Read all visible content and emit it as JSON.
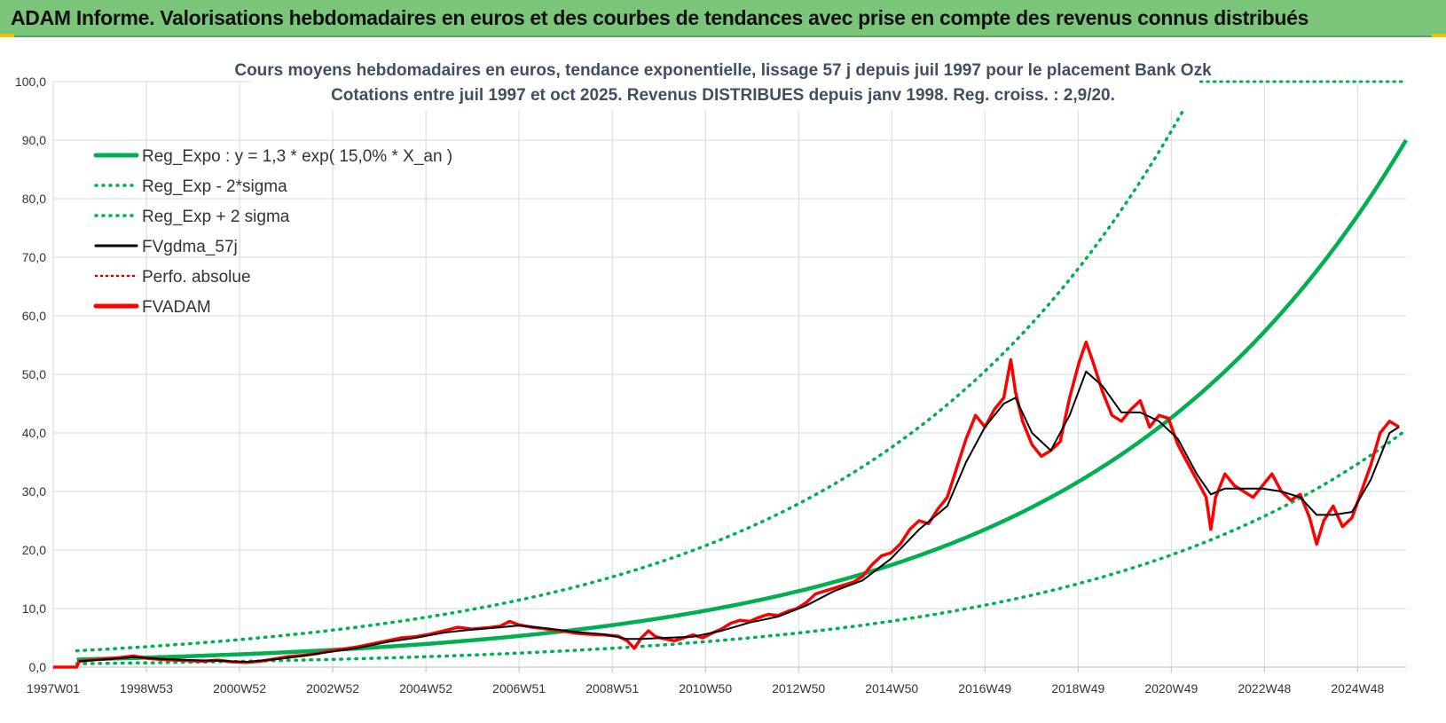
{
  "header": {
    "title": "ADAM Informe. Valorisations hebdomadaires en euros et des courbes de tendances avec prise en compte des revenus connus distribués"
  },
  "colors": {
    "header_bg": "#7bc57b",
    "green": "#00b050",
    "red": "#ff0000",
    "black": "#000000",
    "grid": "#d9d9d9"
  },
  "chart_data": {
    "type": "line",
    "title": "Cours moyens hebdomadaires en euros, tendance exponentielle, lissage 57 j depuis juil 1997 pour le placement Bank Ozk",
    "subtitle": "Cotations entre juil 1997 et oct 2025. Revenus DISTRIBUES depuis janv 1998. Reg. croiss. : 2,9/20.",
    "x_range": [
      1997.5,
      2026.25
    ],
    "ylim": [
      0,
      100
    ],
    "y_ticks": [
      "0,0",
      "10,0",
      "20,0",
      "30,0",
      "40,0",
      "50,0",
      "60,0",
      "70,0",
      "80,0",
      "90,0",
      "100,0"
    ],
    "x_tick_labels": [
      {
        "label": "1997W01",
        "t": 1997.5
      },
      {
        "label": "1998W53",
        "t": 1999.48
      },
      {
        "label": "2000W52",
        "t": 2001.46
      },
      {
        "label": "2002W52",
        "t": 2003.44
      },
      {
        "label": "2004W52",
        "t": 2005.42
      },
      {
        "label": "2006W51",
        "t": 2007.4
      },
      {
        "label": "2008W51",
        "t": 2009.38
      },
      {
        "label": "2010W50",
        "t": 2011.36
      },
      {
        "label": "2012W50",
        "t": 2013.34
      },
      {
        "label": "2014W50",
        "t": 2015.32
      },
      {
        "label": "2016W49",
        "t": 2017.3
      },
      {
        "label": "2018W49",
        "t": 2019.28
      },
      {
        "label": "2020W49",
        "t": 2021.26
      },
      {
        "label": "2022W48",
        "t": 2023.24
      },
      {
        "label": "2024W48",
        "t": 2025.22
      }
    ],
    "legend": [
      {
        "label": "Reg_Expo : y = 1,3 * exp( 15,0% *  X_an )",
        "color": "#00b050",
        "style": "solid-thick"
      },
      {
        "label": "Reg_Exp - 2*sigma",
        "color": "#00b050",
        "style": "dotted"
      },
      {
        "label": "Reg_Exp + 2 sigma",
        "color": "#00b050",
        "style": "dotted"
      },
      {
        "label": "FVgdma_57j",
        "color": "#000000",
        "style": "solid"
      },
      {
        "label": "Perfo. absolue",
        "color": "#c00000",
        "style": "dotted-thin"
      },
      {
        "label": "FVADAM",
        "color": "#ff0000",
        "style": "solid-thick"
      }
    ],
    "regression": {
      "a": 1.3,
      "rate": 0.15,
      "lower_factor": 0.45,
      "upper_factor": 2.15,
      "start": 1998.0
    },
    "series": [
      {
        "name": "FVADAM",
        "points": [
          [
            1997.5,
            0.0
          ],
          [
            1998.0,
            0.0
          ],
          [
            1998.05,
            1.0
          ],
          [
            1998.3,
            1.2
          ],
          [
            1998.6,
            1.4
          ],
          [
            1998.9,
            1.6
          ],
          [
            1999.2,
            1.9
          ],
          [
            1999.5,
            1.5
          ],
          [
            1999.8,
            1.3
          ],
          [
            2000.1,
            1.2
          ],
          [
            2000.4,
            1.1
          ],
          [
            2000.7,
            1.0
          ],
          [
            2001.0,
            1.2
          ],
          [
            2001.3,
            0.9
          ],
          [
            2001.6,
            0.8
          ],
          [
            2001.9,
            1.0
          ],
          [
            2002.2,
            1.4
          ],
          [
            2002.5,
            1.8
          ],
          [
            2002.8,
            2.0
          ],
          [
            2003.1,
            2.3
          ],
          [
            2003.4,
            2.8
          ],
          [
            2003.7,
            3.1
          ],
          [
            2004.0,
            3.5
          ],
          [
            2004.3,
            4.0
          ],
          [
            2004.6,
            4.5
          ],
          [
            2004.9,
            5.0
          ],
          [
            2005.2,
            5.2
          ],
          [
            2005.5,
            5.6
          ],
          [
            2005.8,
            6.2
          ],
          [
            2006.1,
            6.8
          ],
          [
            2006.4,
            6.5
          ],
          [
            2006.7,
            6.7
          ],
          [
            2007.0,
            7.0
          ],
          [
            2007.2,
            7.8
          ],
          [
            2007.4,
            7.2
          ],
          [
            2007.7,
            6.8
          ],
          [
            2008.0,
            6.5
          ],
          [
            2008.3,
            6.2
          ],
          [
            2008.6,
            5.8
          ],
          [
            2008.9,
            5.6
          ],
          [
            2009.2,
            5.5
          ],
          [
            2009.5,
            5.3
          ],
          [
            2009.7,
            4.5
          ],
          [
            2009.85,
            3.2
          ],
          [
            2010.0,
            5.0
          ],
          [
            2010.15,
            6.2
          ],
          [
            2010.3,
            5.2
          ],
          [
            2010.5,
            4.8
          ],
          [
            2010.7,
            4.5
          ],
          [
            2010.9,
            5.0
          ],
          [
            2011.1,
            5.5
          ],
          [
            2011.3,
            5.0
          ],
          [
            2011.5,
            5.8
          ],
          [
            2011.7,
            6.5
          ],
          [
            2011.9,
            7.5
          ],
          [
            2012.1,
            8.0
          ],
          [
            2012.3,
            7.8
          ],
          [
            2012.5,
            8.5
          ],
          [
            2012.7,
            9.0
          ],
          [
            2012.9,
            8.8
          ],
          [
            2013.1,
            9.5
          ],
          [
            2013.3,
            10.0
          ],
          [
            2013.5,
            11.0
          ],
          [
            2013.7,
            12.5
          ],
          [
            2013.9,
            13.0
          ],
          [
            2014.1,
            13.5
          ],
          [
            2014.3,
            14.0
          ],
          [
            2014.5,
            14.5
          ],
          [
            2014.7,
            15.5
          ],
          [
            2014.9,
            17.5
          ],
          [
            2015.1,
            19.0
          ],
          [
            2015.3,
            19.5
          ],
          [
            2015.5,
            21.0
          ],
          [
            2015.7,
            23.5
          ],
          [
            2015.9,
            25.0
          ],
          [
            2016.1,
            24.5
          ],
          [
            2016.3,
            27.0
          ],
          [
            2016.5,
            29.0
          ],
          [
            2016.7,
            34.0
          ],
          [
            2016.9,
            39.0
          ],
          [
            2017.1,
            43.0
          ],
          [
            2017.3,
            41.0
          ],
          [
            2017.5,
            44.0
          ],
          [
            2017.7,
            46.0
          ],
          [
            2017.85,
            52.5
          ],
          [
            2017.95,
            47.0
          ],
          [
            2018.1,
            42.0
          ],
          [
            2018.3,
            38.0
          ],
          [
            2018.5,
            36.0
          ],
          [
            2018.7,
            37.0
          ],
          [
            2018.9,
            38.5
          ],
          [
            2019.1,
            46.0
          ],
          [
            2019.3,
            52.0
          ],
          [
            2019.45,
            55.5
          ],
          [
            2019.6,
            52.0
          ],
          [
            2019.8,
            47.0
          ],
          [
            2020.0,
            43.0
          ],
          [
            2020.2,
            42.0
          ],
          [
            2020.4,
            44.0
          ],
          [
            2020.6,
            45.5
          ],
          [
            2020.8,
            41.0
          ],
          [
            2021.0,
            43.0
          ],
          [
            2021.2,
            42.5
          ],
          [
            2021.4,
            38.0
          ],
          [
            2021.6,
            35.0
          ],
          [
            2021.8,
            32.0
          ],
          [
            2022.0,
            29.0
          ],
          [
            2022.1,
            23.5
          ],
          [
            2022.2,
            29.0
          ],
          [
            2022.4,
            33.0
          ],
          [
            2022.6,
            31.0
          ],
          [
            2022.8,
            30.0
          ],
          [
            2023.0,
            29.0
          ],
          [
            2023.2,
            31.0
          ],
          [
            2023.4,
            33.0
          ],
          [
            2023.6,
            30.0
          ],
          [
            2023.8,
            28.5
          ],
          [
            2024.0,
            29.5
          ],
          [
            2024.2,
            25.5
          ],
          [
            2024.35,
            21.0
          ],
          [
            2024.5,
            25.0
          ],
          [
            2024.7,
            27.5
          ],
          [
            2024.9,
            24.0
          ],
          [
            2025.1,
            25.5
          ],
          [
            2025.3,
            30.0
          ],
          [
            2025.5,
            34.5
          ],
          [
            2025.7,
            40.0
          ],
          [
            2025.9,
            42.0
          ],
          [
            2026.1,
            41.0
          ]
        ]
      },
      {
        "name": "FVgdma_57j",
        "points": [
          [
            1998.05,
            1.0
          ],
          [
            1998.6,
            1.3
          ],
          [
            1999.2,
            1.7
          ],
          [
            1999.8,
            1.4
          ],
          [
            2000.4,
            1.2
          ],
          [
            2001.0,
            1.1
          ],
          [
            2001.6,
            0.9
          ],
          [
            2002.2,
            1.3
          ],
          [
            2002.8,
            1.9
          ],
          [
            2003.4,
            2.6
          ],
          [
            2004.0,
            3.3
          ],
          [
            2004.6,
            4.3
          ],
          [
            2005.2,
            5.0
          ],
          [
            2005.8,
            5.9
          ],
          [
            2006.4,
            6.4
          ],
          [
            2007.0,
            6.8
          ],
          [
            2007.4,
            7.1
          ],
          [
            2008.0,
            6.6
          ],
          [
            2008.6,
            6.0
          ],
          [
            2009.2,
            5.6
          ],
          [
            2009.7,
            4.8
          ],
          [
            2010.0,
            4.8
          ],
          [
            2010.5,
            5.0
          ],
          [
            2011.1,
            5.2
          ],
          [
            2011.7,
            6.2
          ],
          [
            2012.3,
            7.6
          ],
          [
            2012.9,
            8.6
          ],
          [
            2013.5,
            10.5
          ],
          [
            2014.1,
            13.0
          ],
          [
            2014.7,
            14.8
          ],
          [
            2015.3,
            18.5
          ],
          [
            2015.9,
            23.5
          ],
          [
            2016.5,
            27.5
          ],
          [
            2016.9,
            35.0
          ],
          [
            2017.3,
            41.0
          ],
          [
            2017.7,
            45.0
          ],
          [
            2017.95,
            46.0
          ],
          [
            2018.3,
            40.0
          ],
          [
            2018.7,
            37.0
          ],
          [
            2019.1,
            43.0
          ],
          [
            2019.45,
            50.5
          ],
          [
            2019.8,
            48.0
          ],
          [
            2020.2,
            43.5
          ],
          [
            2020.6,
            43.5
          ],
          [
            2021.0,
            42.0
          ],
          [
            2021.4,
            39.0
          ],
          [
            2021.8,
            33.0
          ],
          [
            2022.1,
            29.5
          ],
          [
            2022.4,
            30.5
          ],
          [
            2022.8,
            30.5
          ],
          [
            2023.2,
            30.5
          ],
          [
            2023.6,
            30.0
          ],
          [
            2024.0,
            29.0
          ],
          [
            2024.35,
            26.0
          ],
          [
            2024.7,
            26.0
          ],
          [
            2025.1,
            26.5
          ],
          [
            2025.5,
            32.0
          ],
          [
            2025.9,
            40.0
          ],
          [
            2026.1,
            41.0
          ]
        ]
      }
    ]
  }
}
